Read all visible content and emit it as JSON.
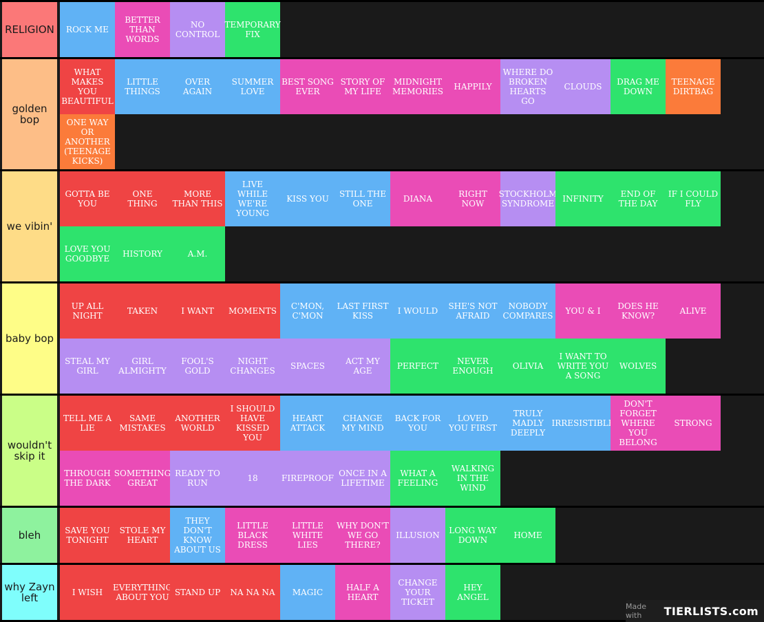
{
  "colors": {
    "red": "#ef4444",
    "blue": "#60b2f5",
    "pink": "#ea4cb6",
    "lavender": "#b68ef2",
    "green": "#2ee36d",
    "orange": "#fb7b3a"
  },
  "tiers": [
    {
      "label": "RELIGION",
      "label_color": "#fb7878",
      "items": [
        {
          "text": "ROCK ME",
          "color": "blue"
        },
        {
          "text": "BETTER THAN WORDS",
          "color": "pink"
        },
        {
          "text": "NO CONTROL",
          "color": "lavender"
        },
        {
          "text": "TEMPORARY FIX",
          "color": "green"
        }
      ]
    },
    {
      "label": "golden bop",
      "label_color": "#fdbe87",
      "items": [
        {
          "text": "WHAT MAKES YOU BEAUTIFUL",
          "color": "red"
        },
        {
          "text": "LITTLE THINGS",
          "color": "blue"
        },
        {
          "text": "OVER AGAIN",
          "color": "blue"
        },
        {
          "text": "SUMMER LOVE",
          "color": "blue"
        },
        {
          "text": "BEST SONG EVER",
          "color": "pink"
        },
        {
          "text": "STORY OF MY LIFE",
          "color": "pink"
        },
        {
          "text": "MIDNIGHT MEMORIES",
          "color": "pink"
        },
        {
          "text": "HAPPILY",
          "color": "pink"
        },
        {
          "text": "WHERE DO BROKEN HEARTS GO",
          "color": "lavender"
        },
        {
          "text": "CLOUDS",
          "color": "lavender"
        },
        {
          "text": "DRAG ME DOWN",
          "color": "green"
        },
        {
          "text": "TEENAGE DIRTBAG",
          "color": "orange"
        },
        {
          "text": "ONE WAY OR ANOTHER (TEENAGE KICKS)",
          "color": "orange"
        }
      ]
    },
    {
      "label": "we vibin'",
      "label_color": "#fedc87",
      "items": [
        {
          "text": "GOTTA BE YOU",
          "color": "red"
        },
        {
          "text": "ONE THING",
          "color": "red"
        },
        {
          "text": "MORE THAN THIS",
          "color": "red"
        },
        {
          "text": "LIVE WHILE WE'RE YOUNG",
          "color": "blue"
        },
        {
          "text": "KISS YOU",
          "color": "blue"
        },
        {
          "text": "STILL THE ONE",
          "color": "blue"
        },
        {
          "text": "DIANA",
          "color": "pink"
        },
        {
          "text": "RIGHT NOW",
          "color": "pink"
        },
        {
          "text": "STOCKHOLM SYNDROME",
          "color": "lavender"
        },
        {
          "text": "INFINITY",
          "color": "green"
        },
        {
          "text": "END OF THE DAY",
          "color": "green"
        },
        {
          "text": "IF I COULD FLY",
          "color": "green"
        },
        {
          "text": "LOVE YOU GOODBYE",
          "color": "green"
        },
        {
          "text": "HISTORY",
          "color": "green"
        },
        {
          "text": "A.M.",
          "color": "green"
        }
      ]
    },
    {
      "label": "baby bop",
      "label_color": "#fefd87",
      "items": [
        {
          "text": "UP ALL NIGHT",
          "color": "red"
        },
        {
          "text": "TAKEN",
          "color": "red"
        },
        {
          "text": "I WANT",
          "color": "red"
        },
        {
          "text": "MOMENTS",
          "color": "red"
        },
        {
          "text": "C'MON, C'MON",
          "color": "blue"
        },
        {
          "text": "LAST FIRST KISS",
          "color": "blue"
        },
        {
          "text": "I WOULD",
          "color": "blue"
        },
        {
          "text": "SHE'S NOT AFRAID",
          "color": "blue"
        },
        {
          "text": "NOBODY COMPARES",
          "color": "blue"
        },
        {
          "text": "YOU & I",
          "color": "pink"
        },
        {
          "text": "DOES HE KNOW?",
          "color": "pink"
        },
        {
          "text": "ALIVE",
          "color": "pink"
        },
        {
          "text": "STEAL MY GIRL",
          "color": "lavender"
        },
        {
          "text": "GIRL ALMIGHTY",
          "color": "lavender"
        },
        {
          "text": "FOOL'S GOLD",
          "color": "lavender"
        },
        {
          "text": "NIGHT CHANGES",
          "color": "lavender"
        },
        {
          "text": "SPACES",
          "color": "lavender"
        },
        {
          "text": "ACT MY AGE",
          "color": "lavender"
        },
        {
          "text": "PERFECT",
          "color": "green"
        },
        {
          "text": "NEVER ENOUGH",
          "color": "green"
        },
        {
          "text": "OLIVIA",
          "color": "green"
        },
        {
          "text": "I WANT TO WRITE YOU A SONG",
          "color": "green"
        },
        {
          "text": "WOLVES",
          "color": "green"
        }
      ]
    },
    {
      "label": "wouldn't skip it",
      "label_color": "#cafe87",
      "items": [
        {
          "text": "TELL ME A LIE",
          "color": "red"
        },
        {
          "text": "SAME MISTAKES",
          "color": "red"
        },
        {
          "text": "ANOTHER WORLD",
          "color": "red"
        },
        {
          "text": "I SHOULD HAVE KISSED YOU",
          "color": "red"
        },
        {
          "text": "HEART ATTACK",
          "color": "blue"
        },
        {
          "text": "CHANGE MY MIND",
          "color": "blue"
        },
        {
          "text": "BACK FOR YOU",
          "color": "blue"
        },
        {
          "text": "LOVED YOU FIRST",
          "color": "blue"
        },
        {
          "text": "TRULY MADLY DEEPLY",
          "color": "blue"
        },
        {
          "text": "IRRESISTIBLE",
          "color": "blue"
        },
        {
          "text": "DON'T FORGET WHERE YOU BELONG",
          "color": "pink"
        },
        {
          "text": "STRONG",
          "color": "pink"
        },
        {
          "text": "THROUGH THE DARK",
          "color": "pink"
        },
        {
          "text": "SOMETHING GREAT",
          "color": "pink"
        },
        {
          "text": "READY TO RUN",
          "color": "lavender"
        },
        {
          "text": "18",
          "color": "lavender"
        },
        {
          "text": "FIREPROOF",
          "color": "lavender"
        },
        {
          "text": "ONCE IN A LIFETIME",
          "color": "lavender"
        },
        {
          "text": "WHAT A FEELING",
          "color": "green"
        },
        {
          "text": "WALKING IN THE WIND",
          "color": "green"
        }
      ]
    },
    {
      "label": "bleh",
      "label_color": "#8ef29e",
      "items": [
        {
          "text": "SAVE YOU TONIGHT",
          "color": "red"
        },
        {
          "text": "STOLE MY HEART",
          "color": "red"
        },
        {
          "text": "THEY DON'T KNOW ABOUT US",
          "color": "blue"
        },
        {
          "text": "LITTLE BLACK DRESS",
          "color": "pink"
        },
        {
          "text": "LITTLE WHITE LIES",
          "color": "pink"
        },
        {
          "text": "WHY DON'T WE GO THERE?",
          "color": "pink"
        },
        {
          "text": "ILLUSION",
          "color": "lavender"
        },
        {
          "text": "LONG WAY DOWN",
          "color": "green"
        },
        {
          "text": "HOME",
          "color": "green"
        }
      ]
    },
    {
      "label": "why Zayn left",
      "label_color": "#7ffefc",
      "items": [
        {
          "text": "I WISH",
          "color": "red"
        },
        {
          "text": "EVERYTHING ABOUT YOU",
          "color": "red"
        },
        {
          "text": "STAND UP",
          "color": "red"
        },
        {
          "text": "NA NA NA",
          "color": "red"
        },
        {
          "text": "MAGIC",
          "color": "blue"
        },
        {
          "text": "HALF A HEART",
          "color": "pink"
        },
        {
          "text": "CHANGE YOUR TICKET",
          "color": "lavender"
        },
        {
          "text": "HEY ANGEL",
          "color": "green"
        }
      ]
    }
  ],
  "watermark": {
    "made_with": "Made with",
    "logo": "TIERLISTS.com"
  }
}
